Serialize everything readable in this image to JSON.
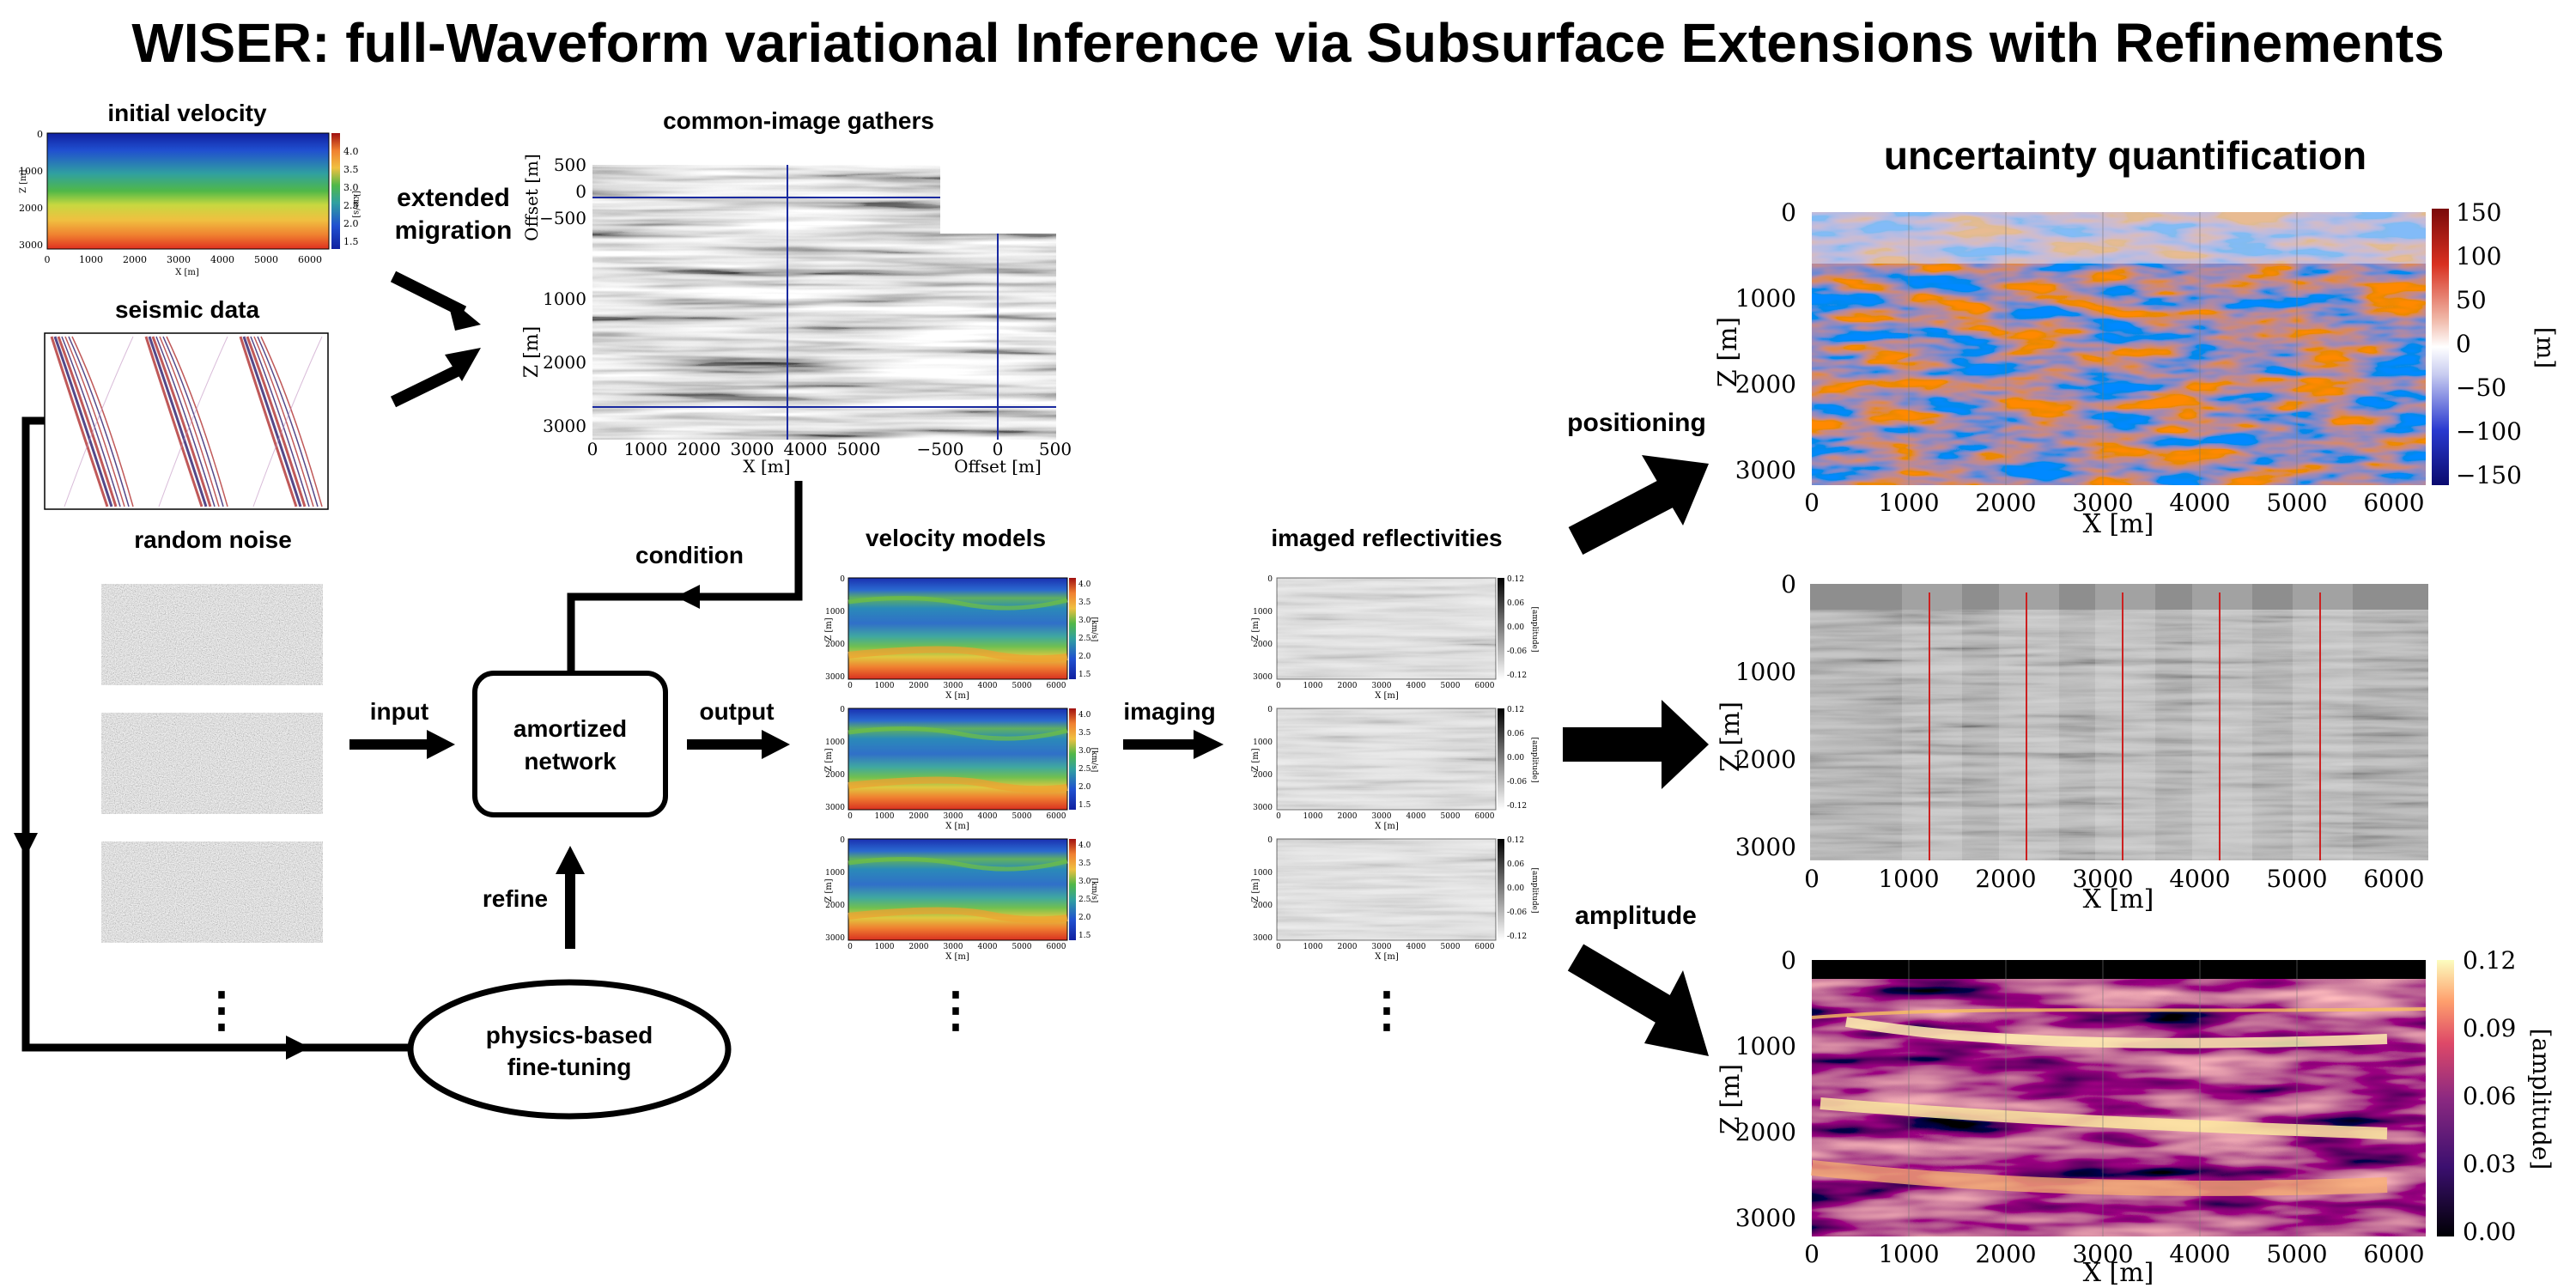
{
  "title": "WISER: full-Waveform variational Inference via Subsurface Extensions with Refinements",
  "labels": {
    "initial_velocity": "initial velocity",
    "seismic_data": "seismic data",
    "random_noise": "random noise",
    "extended_migration_1": "extended",
    "extended_migration_2": "migration",
    "cig": "common-image gathers",
    "condition": "condition",
    "velocity_models": "velocity models",
    "imaged_reflectivities": "imaged reflectivities",
    "input": "input",
    "output": "output",
    "imaging": "imaging",
    "refine": "refine",
    "network_1": "amortized",
    "network_2": "network",
    "physics_1": "physics-based",
    "physics_2": "fine-tuning",
    "uq": "uncertainty quantification",
    "positioning": "positioning",
    "amplitude": "amplitude",
    "dots": "⋮"
  },
  "axes": {
    "z": "Z [m]",
    "x": "X [m]",
    "offset": "Offset [m]",
    "kms": "[km/s]",
    "m_unit": "[m]",
    "amp_unit": "[amplitude]"
  },
  "colors": {
    "velocity_cmap": [
      "#a01010",
      "#e03020",
      "#f08030",
      "#f0c040",
      "#c8d840",
      "#50b848",
      "#30a0a0",
      "#2050d0",
      "#1020a0"
    ],
    "uq_cmap": [
      "#0a0a6e",
      "#4a5ad8",
      "#c8ccf0",
      "#ffffff",
      "#f0b8a8",
      "#e04030",
      "#8a0a0a"
    ],
    "amp_cmap": [
      "#000000",
      "#3a0a5a",
      "#8a1e7a",
      "#d84a5a",
      "#f8a040",
      "#fff0b0"
    ],
    "accent_red": "#cc2020",
    "cig_line": "#1a2aa0"
  },
  "small_velocity": {
    "z_ticks": [
      "0",
      "1000",
      "2000",
      "3000"
    ],
    "x_ticks": [
      "0",
      "1000",
      "2000",
      "3000",
      "4000",
      "5000",
      "6000"
    ],
    "cb_ticks": [
      "4.0",
      "3.5",
      "3.0",
      "2.5",
      "2.0",
      "1.5"
    ]
  },
  "small_reflectivity": {
    "cb_ticks": [
      "0.12",
      "0.06",
      "0.00",
      "-0.06",
      "-0.12"
    ]
  },
  "cig": {
    "offset_ticks": [
      "500",
      "0",
      "−500"
    ],
    "z_ticks": [
      "1000",
      "2000",
      "3000"
    ],
    "x_ticks": [
      "0",
      "1000",
      "2000",
      "3000",
      "4000",
      "5000"
    ],
    "off_x_ticks": [
      "−500",
      "0",
      "500"
    ]
  },
  "uq_panels": {
    "z_ticks": [
      "0",
      "1000",
      "2000",
      "3000"
    ],
    "x_ticks": [
      "0",
      "1000",
      "2000",
      "3000",
      "4000",
      "5000",
      "6000"
    ],
    "positioning_cb": [
      "150",
      "100",
      "50",
      "0",
      "−50",
      "−100",
      "−150"
    ],
    "amplitude_cb": [
      "0.12",
      "0.09",
      "0.06",
      "0.03",
      "0.00"
    ]
  }
}
